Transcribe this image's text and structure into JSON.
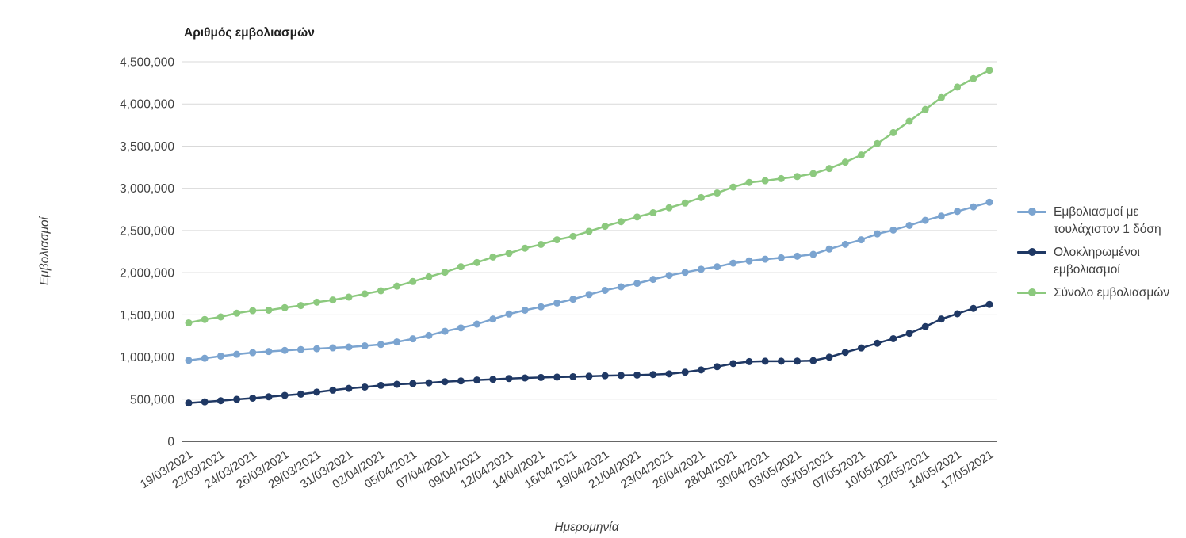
{
  "chart_data": {
    "type": "line",
    "title": "Αριθμός εμβολιασμών",
    "xlabel": "Ημερομηνία",
    "ylabel": "Εμβολιασμοί",
    "ylim": [
      0,
      4500000
    ],
    "ytick_step": 500000,
    "ytick_labels": [
      "0",
      "500,000",
      "1,000,000",
      "1,500,000",
      "2,000,000",
      "2,500,000",
      "3,000,000",
      "3,500,000",
      "4,000,000",
      "4,500,000"
    ],
    "grid": true,
    "legend_position": "right",
    "colors": {
      "grid": "#d9d9d9",
      "axis_line": "#333333",
      "axis_text": "#404040",
      "title_text": "#1f1f1f"
    },
    "x_tick_every": 2,
    "x_tick_labels": [
      "19/03/2021",
      "22/03/2021",
      "24/03/2021",
      "26/03/2021",
      "29/03/2021",
      "31/03/2021",
      "02/04/2021",
      "05/04/2021",
      "07/04/2021",
      "09/04/2021",
      "12/04/2021",
      "14/04/2021",
      "16/04/2021",
      "19/04/2021",
      "21/04/2021",
      "23/04/2021",
      "26/04/2021",
      "28/04/2021",
      "30/04/2021",
      "03/05/2021",
      "05/05/2021",
      "07/05/2021",
      "10/05/2021",
      "12/05/2021",
      "14/05/2021",
      "17/05/2021"
    ],
    "x": [
      "19/03/2021",
      "20/03/2021",
      "22/03/2021",
      "23/03/2021",
      "24/03/2021",
      "25/03/2021",
      "26/03/2021",
      "27/03/2021",
      "29/03/2021",
      "30/03/2021",
      "31/03/2021",
      "01/04/2021",
      "02/04/2021",
      "03/04/2021",
      "05/04/2021",
      "06/04/2021",
      "07/04/2021",
      "08/04/2021",
      "09/04/2021",
      "10/04/2021",
      "12/04/2021",
      "13/04/2021",
      "14/04/2021",
      "15/04/2021",
      "16/04/2021",
      "17/04/2021",
      "19/04/2021",
      "20/04/2021",
      "21/04/2021",
      "22/04/2021",
      "23/04/2021",
      "24/04/2021",
      "26/04/2021",
      "27/04/2021",
      "28/04/2021",
      "29/04/2021",
      "30/04/2021",
      "01/05/2021",
      "03/05/2021",
      "04/05/2021",
      "05/05/2021",
      "06/05/2021",
      "07/05/2021",
      "08/05/2021",
      "10/05/2021",
      "11/05/2021",
      "12/05/2021",
      "13/05/2021",
      "14/05/2021",
      "15/05/2021",
      "17/05/2021"
    ],
    "series": [
      {
        "name": "Εμβολιασμοί με τουλάχιστον 1 δόση",
        "color": "#7BA4D0",
        "values": [
          960000,
          985000,
          1010000,
          1032000,
          1052000,
          1065000,
          1078000,
          1088000,
          1098000,
          1108000,
          1118000,
          1132000,
          1148000,
          1178000,
          1215000,
          1255000,
          1305000,
          1345000,
          1390000,
          1450000,
          1510000,
          1555000,
          1595000,
          1640000,
          1685000,
          1740000,
          1790000,
          1832000,
          1873000,
          1920000,
          1967000,
          2004000,
          2040000,
          2070000,
          2113000,
          2140000,
          2160000,
          2176000,
          2195000,
          2217000,
          2280000,
          2336000,
          2390000,
          2460000,
          2505000,
          2560000,
          2620000,
          2670000,
          2726000,
          2780000,
          2835000
        ]
      },
      {
        "name": "Ολοκληρωμένοι εμβολιασμοί",
        "color": "#1F3864",
        "values": [
          455000,
          468000,
          482000,
          498000,
          512000,
          528000,
          545000,
          560000,
          584000,
          607000,
          628000,
          644000,
          663000,
          676000,
          685000,
          694000,
          707000,
          716000,
          727000,
          735000,
          745000,
          751000,
          757000,
          762000,
          766000,
          771000,
          778000,
          782000,
          786000,
          792000,
          800000,
          820000,
          847000,
          885000,
          922000,
          945000,
          950000,
          950000,
          951000,
          957000,
          997000,
          1055000,
          1107000,
          1163000,
          1217000,
          1280000,
          1360000,
          1450000,
          1513000,
          1576000,
          1623000
        ]
      },
      {
        "name": "Σύνολο εμβολιασμών",
        "color": "#8CC97E",
        "values": [
          1405000,
          1445000,
          1475000,
          1520000,
          1550000,
          1555000,
          1585000,
          1610000,
          1650000,
          1676000,
          1710000,
          1748000,
          1785000,
          1840000,
          1895000,
          1950000,
          2005000,
          2070000,
          2120000,
          2185000,
          2230000,
          2290000,
          2335000,
          2390000,
          2430000,
          2490000,
          2550000,
          2605000,
          2660000,
          2710000,
          2770000,
          2825000,
          2890000,
          2945000,
          3015000,
          3070000,
          3090000,
          3115000,
          3140000,
          3175000,
          3235000,
          3310000,
          3395000,
          3530000,
          3660000,
          3795000,
          3935000,
          4075000,
          4200000,
          4300000,
          4400000
        ]
      }
    ]
  }
}
